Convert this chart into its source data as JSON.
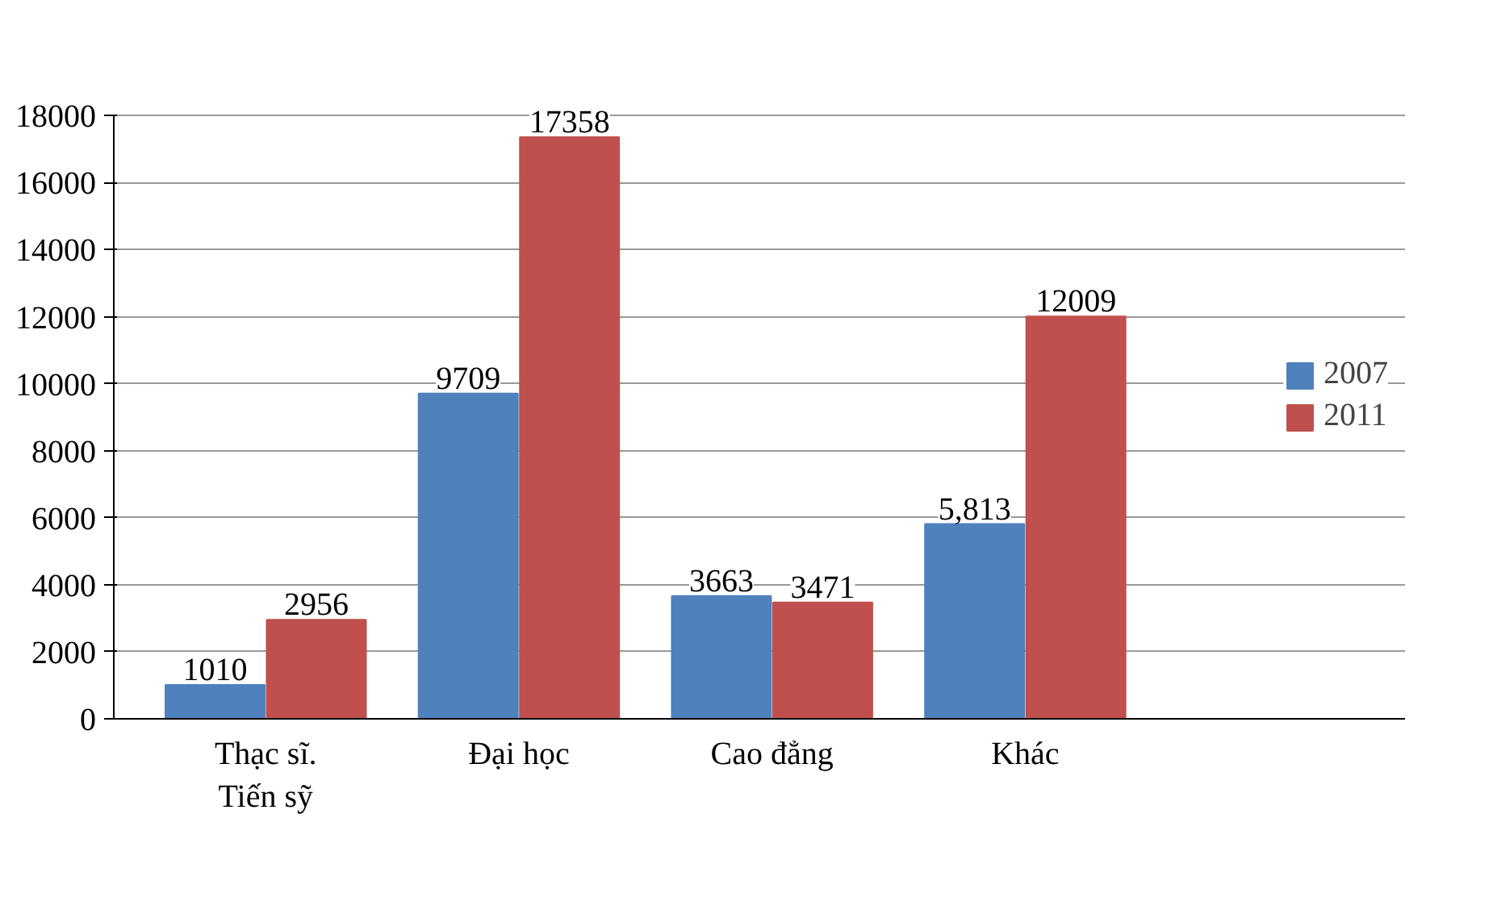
{
  "chart_data": {
    "type": "bar",
    "categories": [
      "Thạc sĩ.\nTiến sỹ",
      "Đại học",
      "Cao đẳng",
      "Khác"
    ],
    "series": [
      {
        "name": "2007",
        "color": "#4f81bd",
        "values": [
          1010,
          9709,
          3663,
          5813
        ],
        "value_labels": [
          "1010",
          "9709",
          "3663",
          "5,813"
        ]
      },
      {
        "name": "2011",
        "color": "#c0504d",
        "values": [
          2956,
          17358,
          3471,
          12009
        ],
        "value_labels": [
          "2956",
          "17358",
          "3471",
          "12009"
        ]
      }
    ],
    "ylim": [
      0,
      18000
    ],
    "yticks": [
      0,
      2000,
      4000,
      6000,
      8000,
      10000,
      12000,
      14000,
      16000,
      18000
    ],
    "grid": "y",
    "legend": "right"
  }
}
